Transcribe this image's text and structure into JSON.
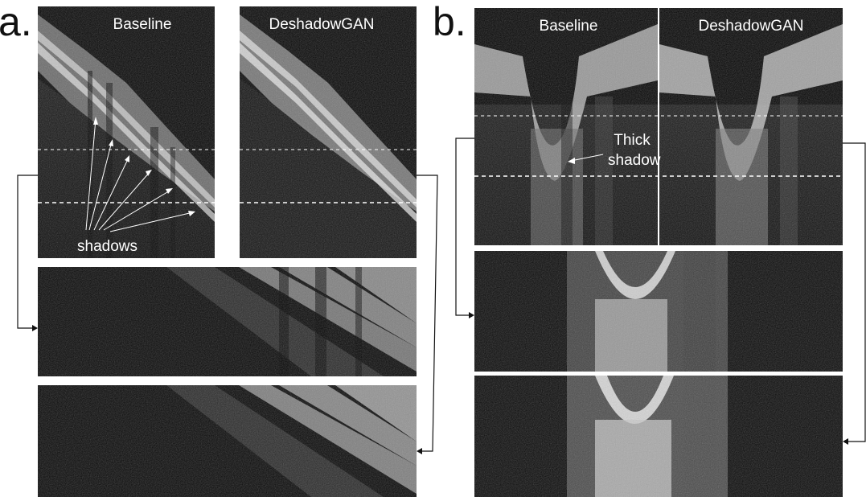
{
  "panel_a": {
    "letter": "a.",
    "baseline_title": "Baseline",
    "deshadow_title": "DeshadowGAN",
    "shadows_label": "shadows"
  },
  "panel_b": {
    "letter": "b.",
    "baseline_title": "Baseline",
    "deshadow_title": "DeshadowGAN",
    "thick_label": "Thick",
    "shadow_label": "shadow"
  },
  "colors": {
    "background": "#ffffff",
    "scan_dark": "#050505",
    "tissue": "#9a9a9a",
    "dashed_line": "#ffffff",
    "connector": "#111111"
  }
}
